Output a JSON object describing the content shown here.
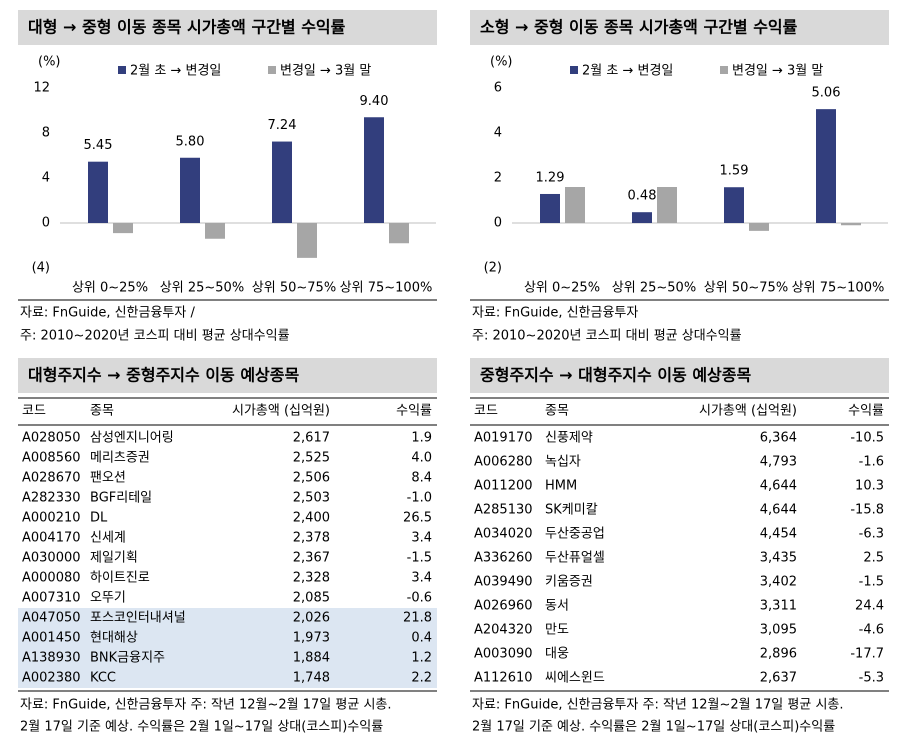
{
  "chart_data": [
    {
      "type": "bar",
      "title": "대형 → 중형 이동 종목 시가총액 구간별 수익률",
      "y_unit": "(%)",
      "categories": [
        "상위 0~25%",
        "상위 25~50%",
        "상위 50~75%",
        "상위 75~100%"
      ],
      "series": [
        {
          "name": "2월 초 → 변경일",
          "color": "#323e7d",
          "values": [
            5.45,
            5.8,
            7.24,
            9.4
          ],
          "value_labels": [
            "5.45",
            "5.80",
            "7.24",
            "9.40"
          ]
        },
        {
          "name": "변경일 → 3월 말",
          "color": "#a6a6a6",
          "values": [
            -0.9,
            -1.4,
            -3.1,
            -1.8
          ]
        }
      ],
      "ylim": [
        -4,
        12
      ],
      "yticks": [
        12,
        8,
        4,
        0,
        {
          "value": -4,
          "label": "(4)"
        }
      ],
      "source": "자료: FnGuide, 신한금융투자 /",
      "note": "주: 2010~2020년 코스피 대비 평균 상대수익률"
    },
    {
      "type": "bar",
      "title": "소형 → 중형 이동 종목 시가총액 구간별 수익률",
      "y_unit": "(%)",
      "categories": [
        "상위 0~25%",
        "상위 25~50%",
        "상위 50~75%",
        "상위 75~100%"
      ],
      "series": [
        {
          "name": "2월 초 → 변경일",
          "color": "#323e7d",
          "values": [
            1.29,
            0.48,
            1.59,
            5.06
          ],
          "value_labels": [
            "1.29",
            "0.48",
            "1.59",
            "5.06"
          ]
        },
        {
          "name": "변경일 → 3월 말",
          "color": "#a6a6a6",
          "values": [
            1.6,
            1.6,
            -0.35,
            -0.1
          ]
        }
      ],
      "ylim": [
        -2,
        6
      ],
      "yticks": [
        6,
        4,
        2,
        0,
        {
          "value": -2,
          "label": "(2)"
        }
      ],
      "source": "자료: FnGuide, 신한금융투자",
      "note": "주: 2010~2020년 코스피 대비 평균 상대수익률"
    }
  ],
  "tables": [
    {
      "title": "대형주지수 → 중형주지수 이동 예상종목",
      "columns": [
        "코드",
        "종목",
        "시가총액 (십억원)",
        "수익률"
      ],
      "rows": [
        [
          "A028050",
          "삼성엔지니어링",
          "2,617",
          "1.9"
        ],
        [
          "A008560",
          "메리츠증권",
          "2,525",
          "4.0"
        ],
        [
          "A028670",
          "팬오션",
          "2,506",
          "8.4"
        ],
        [
          "A282330",
          "BGF리테일",
          "2,503",
          "-1.0"
        ],
        [
          "A000210",
          "DL",
          "2,400",
          "26.5"
        ],
        [
          "A004170",
          "신세계",
          "2,378",
          "3.4"
        ],
        [
          "A030000",
          "제일기획",
          "2,367",
          "-1.5"
        ],
        [
          "A000080",
          "하이트진로",
          "2,328",
          "3.4"
        ],
        [
          "A007310",
          "오뚜기",
          "2,085",
          "-0.6"
        ],
        [
          "A047050",
          "포스코인터내셔널",
          "2,026",
          "21.8"
        ],
        [
          "A001450",
          "현대해상",
          "1,973",
          "0.4"
        ],
        [
          "A138930",
          "BNK금융지주",
          "1,884",
          "1.2"
        ],
        [
          "A002380",
          "KCC",
          "1,748",
          "2.2"
        ]
      ],
      "highlight_rows": [
        9,
        10,
        11,
        12
      ],
      "footnote": [
        "자료: FnGuide, 신한금융투자 주: 작년 12월~2월 17일 평균 시총.",
        "2월 17일 기준 예상. 수익률은 2월 1일~17일 상대(코스피)수익률"
      ]
    },
    {
      "title": "중형주지수 → 대형주지수 이동 예상종목",
      "columns": [
        "코드",
        "종목",
        "시가총액 (십억원)",
        "수익률"
      ],
      "rows": [
        [
          "A019170",
          "신풍제약",
          "6,364",
          "-10.5"
        ],
        [
          "A006280",
          "녹십자",
          "4,793",
          "-1.6"
        ],
        [
          "A011200",
          "HMM",
          "4,644",
          "10.3"
        ],
        [
          "A285130",
          "SK케미칼",
          "4,644",
          "-15.8"
        ],
        [
          "A034020",
          "두산중공업",
          "4,454",
          "-6.3"
        ],
        [
          "A336260",
          "두산퓨얼셀",
          "3,435",
          "2.5"
        ],
        [
          "A039490",
          "키움증권",
          "3,402",
          "-1.5"
        ],
        [
          "A026960",
          "동서",
          "3,311",
          "24.4"
        ],
        [
          "A204320",
          "만도",
          "3,095",
          "-4.6"
        ],
        [
          "A003090",
          "대웅",
          "2,896",
          "-17.7"
        ],
        [
          "A112610",
          "씨에스윈드",
          "2,637",
          "-5.3"
        ]
      ],
      "footnote": [
        "자료: FnGuide, 신한금융투자 주: 작년 12월~2월 17일 평균 시총.",
        "2월 17일 기준 예상. 수익률은 2월 1일~17일 상대(코스피)수익률"
      ]
    }
  ]
}
